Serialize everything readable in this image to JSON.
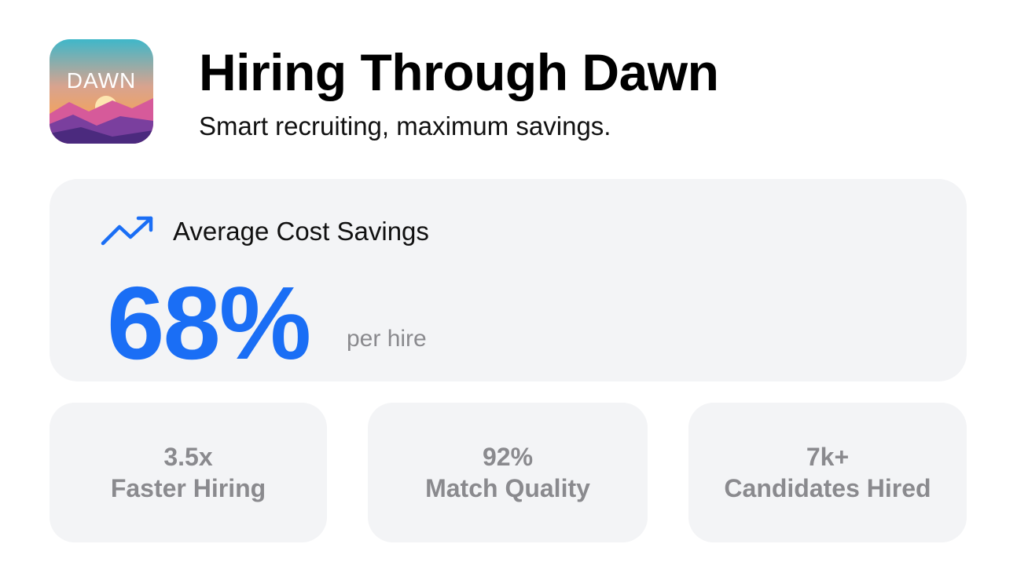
{
  "header": {
    "logo_text": "DAWN",
    "title": "Hiring Through Dawn",
    "subtitle": "Smart recruiting, maximum savings."
  },
  "main_stat": {
    "label": "Average Cost Savings",
    "value": "68%",
    "unit": "per hire"
  },
  "stats": [
    {
      "value": "3.5x",
      "label": "Faster Hiring"
    },
    {
      "value": "92%",
      "label": "Match Quality"
    },
    {
      "value": "7k+",
      "label": "Candidates Hired"
    }
  ]
}
